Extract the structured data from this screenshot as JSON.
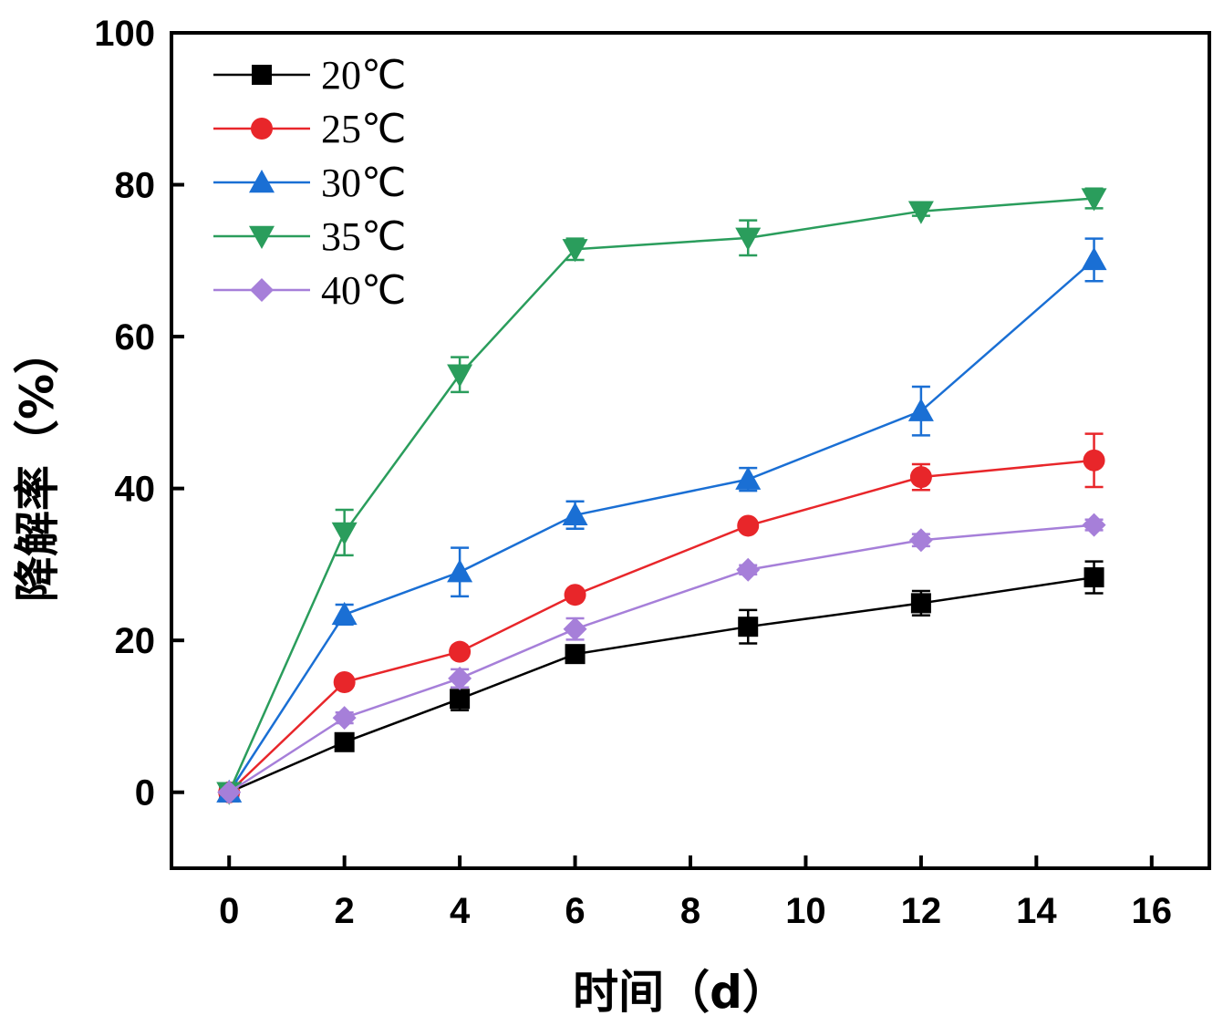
{
  "chart_data": {
    "type": "line",
    "title": "",
    "xlabel": "时间（d）",
    "ylabel": "降解率（%）",
    "xlim": [
      -1,
      17
    ],
    "ylim": [
      -10,
      100
    ],
    "xticks": [
      0,
      2,
      4,
      6,
      8,
      10,
      12,
      14,
      16
    ],
    "yticks": [
      0,
      20,
      40,
      60,
      80,
      100
    ],
    "x": [
      0,
      2,
      4,
      6,
      9,
      12,
      15
    ],
    "legend_position": "top-left",
    "series": [
      {
        "name": "20℃",
        "color": "#000000",
        "marker": "square",
        "values": [
          0,
          6.6,
          12.3,
          18.2,
          21.8,
          24.9,
          28.3
        ],
        "errors": [
          0,
          0.6,
          1.5,
          0.6,
          2.2,
          1.6,
          2.1
        ]
      },
      {
        "name": "25℃",
        "color": "#e8262a",
        "marker": "circle",
        "values": [
          0,
          14.5,
          18.5,
          26.0,
          35.1,
          41.5,
          43.7
        ],
        "errors": [
          0,
          0.6,
          0.6,
          0.5,
          0.6,
          1.7,
          3.5
        ]
      },
      {
        "name": "30℃",
        "color": "#1a6fd4",
        "marker": "triangle-up",
        "values": [
          0,
          23.4,
          29.0,
          36.5,
          41.2,
          50.2,
          70.1
        ],
        "errors": [
          0,
          1.3,
          3.2,
          1.8,
          1.5,
          3.2,
          2.8
        ]
      },
      {
        "name": "35℃",
        "color": "#2a9d5c",
        "marker": "triangle-down",
        "values": [
          0,
          34.2,
          55.0,
          71.5,
          73.0,
          76.5,
          78.2
        ],
        "errors": [
          0,
          3.0,
          2.3,
          1.4,
          2.3,
          0.6,
          1.3
        ]
      },
      {
        "name": "40℃",
        "color": "#a67fd9",
        "marker": "diamond",
        "values": [
          0,
          9.8,
          15.0,
          21.5,
          29.3,
          33.2,
          35.2
        ],
        "errors": [
          0,
          0.7,
          1.2,
          1.4,
          0.6,
          0.8,
          0.7
        ]
      }
    ]
  }
}
